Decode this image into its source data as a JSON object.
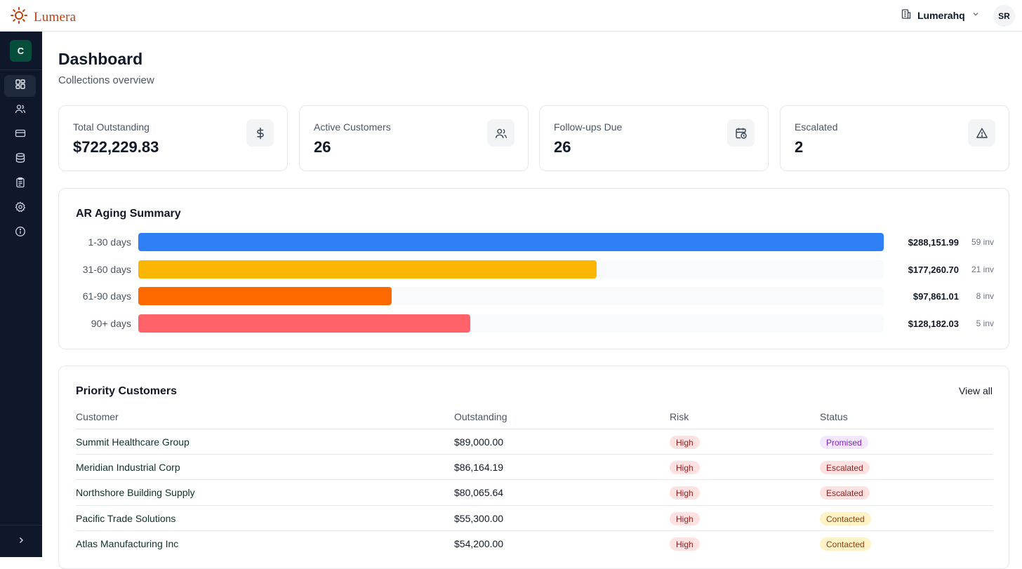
{
  "app": {
    "brand_name": "Lumera",
    "org_name": "Lumerahq",
    "user_initials": "SR",
    "workspace_initial": "C"
  },
  "sidebar": {
    "items": [
      {
        "icon": "dashboard-icon",
        "active": true
      },
      {
        "icon": "users-icon",
        "active": false
      },
      {
        "icon": "credit-card-icon",
        "active": false
      },
      {
        "icon": "database-icon",
        "active": false
      },
      {
        "icon": "clipboard-icon",
        "active": false
      },
      {
        "icon": "settings-icon",
        "active": false
      },
      {
        "icon": "info-icon",
        "active": false
      }
    ],
    "expand_icon": "chevron-right-icon"
  },
  "page": {
    "title": "Dashboard",
    "subtitle": "Collections overview"
  },
  "stats": [
    {
      "label": "Total Outstanding",
      "value": "$722,229.83",
      "icon": "dollar-icon"
    },
    {
      "label": "Active Customers",
      "value": "26",
      "icon": "users-icon"
    },
    {
      "label": "Follow-ups Due",
      "value": "26",
      "icon": "calendar-clock-icon"
    },
    {
      "label": "Escalated",
      "value": "2",
      "icon": "alert-triangle-icon"
    }
  ],
  "aging": {
    "title": "AR Aging Summary",
    "rows": [
      {
        "label": "1-30 days",
        "amount": "$288,151.99",
        "count": "59 inv",
        "fraction": 1.0,
        "color": "#2f80f7"
      },
      {
        "label": "31-60 days",
        "amount": "$177,260.70",
        "count": "21 inv",
        "fraction": 0.615,
        "color": "#fbb603"
      },
      {
        "label": "61-90 days",
        "amount": "$97,861.01",
        "count": "8 inv",
        "fraction": 0.34,
        "color": "#ff6a00"
      },
      {
        "label": "90+ days",
        "amount": "$128,182.03",
        "count": "5 inv",
        "fraction": 0.445,
        "color": "#ff6369"
      }
    ]
  },
  "priority": {
    "title": "Priority Customers",
    "view_all": "View all",
    "columns": [
      "Customer",
      "Outstanding",
      "Risk",
      "Status"
    ],
    "rows": [
      {
        "customer": "Summit Healthcare Group",
        "outstanding": "$89,000.00",
        "risk": "High",
        "status": "Promised",
        "status_bg": "#f3e8ff",
        "status_fg": "#7e22ce"
      },
      {
        "customer": "Meridian Industrial Corp",
        "outstanding": "$86,164.19",
        "risk": "High",
        "status": "Escalated",
        "status_bg": "#fee2e2",
        "status_fg": "#991b1b"
      },
      {
        "customer": "Northshore Building Supply",
        "outstanding": "$80,065.64",
        "risk": "High",
        "status": "Escalated",
        "status_bg": "#fee2e2",
        "status_fg": "#991b1b"
      },
      {
        "customer": "Pacific Trade Solutions",
        "outstanding": "$55,300.00",
        "risk": "High",
        "status": "Contacted",
        "status_bg": "#fef3c7",
        "status_fg": "#92400e"
      },
      {
        "customer": "Atlas Manufacturing Inc",
        "outstanding": "$54,200.00",
        "risk": "High",
        "status": "Contacted",
        "status_bg": "#fef3c7",
        "status_fg": "#92400e"
      }
    ],
    "risk_bg": "#fee2e2",
    "risk_fg": "#991b1b"
  }
}
